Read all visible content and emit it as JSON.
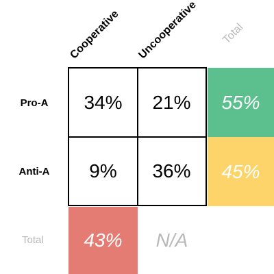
{
  "columns": {
    "cooperative": "Cooperative",
    "uncooperative": "Uncooperative",
    "total": "Total"
  },
  "rows": {
    "pro_a": "Pro-A",
    "anti_a": "Anti-A",
    "total": "Total"
  },
  "cells": {
    "pro_a_cooperative": "34%",
    "pro_a_uncooperative": "21%",
    "anti_a_cooperative": "9%",
    "anti_a_uncooperative": "36%"
  },
  "totals": {
    "pro_a": "55%",
    "anti_a": "45%",
    "cooperative": "43%",
    "uncooperative": "N/A"
  },
  "colors": {
    "pro_a_total": "#5cbf8e",
    "anti_a_total": "#fdd46a",
    "cooperative_total": "#e57c73"
  }
}
